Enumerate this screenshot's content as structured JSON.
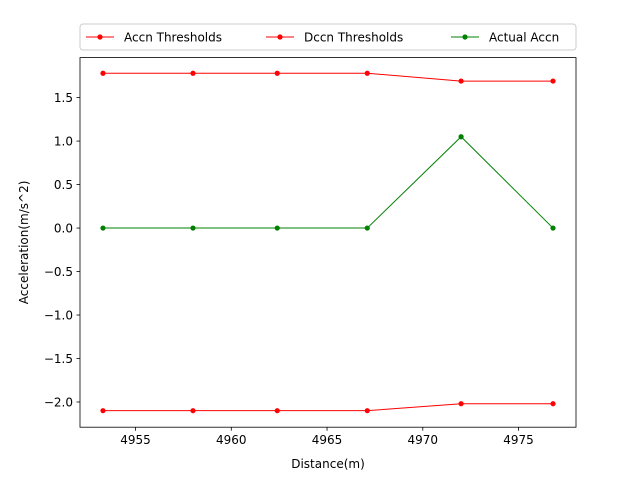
{
  "chart_data": {
    "type": "line",
    "title": "",
    "xlabel": "Distance(m)",
    "ylabel": "Acceleration(m/s^2)",
    "xlim": [
      4952.1,
      4978.0
    ],
    "ylim": [
      -2.29,
      1.96
    ],
    "xticks": [
      4955,
      4960,
      4965,
      4970,
      4975
    ],
    "yticks": [
      -2.0,
      -1.5,
      -1.0,
      -0.5,
      0.0,
      0.5,
      1.0,
      1.5
    ],
    "xtick_labels": [
      "4955",
      "4960",
      "4965",
      "4970",
      "4975"
    ],
    "ytick_labels": [
      "−2.0",
      "−1.5",
      "−1.0",
      "−0.5",
      "0.0",
      "0.5",
      "1.0",
      "1.5"
    ],
    "grid": false,
    "legend_position": "top-center-above",
    "x": [
      4953.3,
      4958.0,
      4962.4,
      4967.1,
      4972.0,
      4976.8
    ],
    "series": [
      {
        "name": "Accn Thresholds",
        "color": "#ff0000",
        "values": [
          1.78,
          1.78,
          1.78,
          1.78,
          1.69,
          1.69
        ]
      },
      {
        "name": "Dccn Thresholds",
        "color": "#ff0000",
        "values": [
          -2.1,
          -2.1,
          -2.1,
          -2.1,
          -2.02,
          -2.02
        ]
      },
      {
        "name": "Actual Accn",
        "color": "#008000",
        "values": [
          0.0,
          0.0,
          0.0,
          0.0,
          1.05,
          0.0
        ]
      }
    ]
  }
}
